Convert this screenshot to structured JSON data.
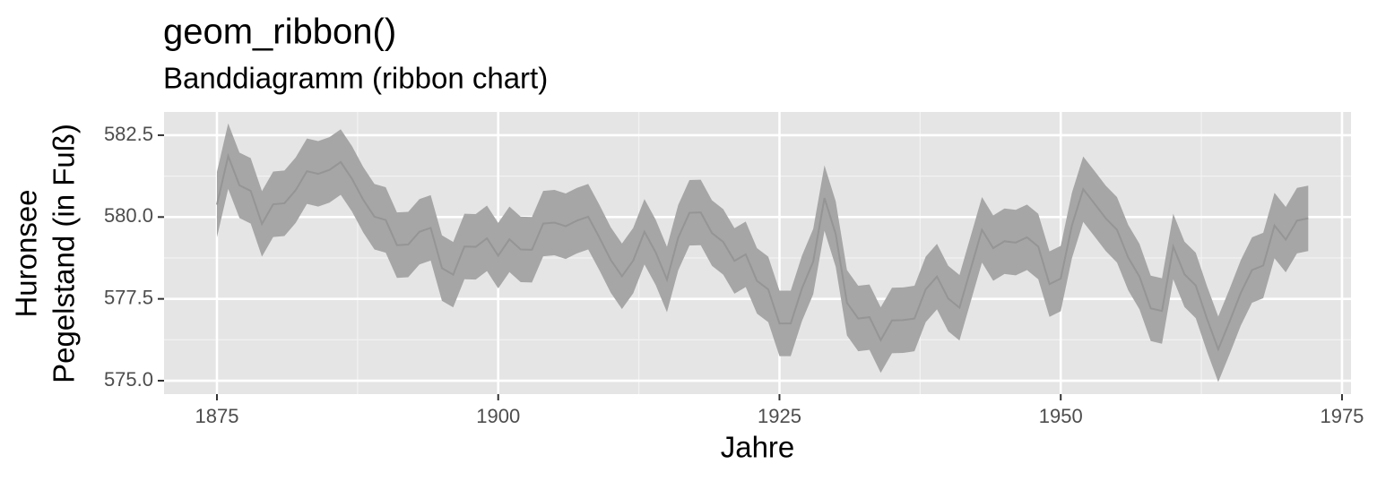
{
  "chart_data": {
    "type": "ribbon",
    "title": "geom_ribbon()",
    "subtitle": "Banddiagramm (ribbon chart)",
    "xlabel": "Jahre",
    "ylabel": [
      "Huronsee",
      "Pegelstand (in Fuß)"
    ],
    "x": [
      1875,
      1876,
      1877,
      1878,
      1879,
      1880,
      1881,
      1882,
      1883,
      1884,
      1885,
      1886,
      1887,
      1888,
      1889,
      1890,
      1891,
      1892,
      1893,
      1894,
      1895,
      1896,
      1897,
      1898,
      1899,
      1900,
      1901,
      1902,
      1903,
      1904,
      1905,
      1906,
      1907,
      1908,
      1909,
      1910,
      1911,
      1912,
      1913,
      1914,
      1915,
      1916,
      1917,
      1918,
      1919,
      1920,
      1921,
      1922,
      1923,
      1924,
      1925,
      1926,
      1927,
      1928,
      1929,
      1930,
      1931,
      1932,
      1933,
      1934,
      1935,
      1936,
      1937,
      1938,
      1939,
      1940,
      1941,
      1942,
      1943,
      1944,
      1945,
      1946,
      1947,
      1948,
      1949,
      1950,
      1951,
      1952,
      1953,
      1954,
      1955,
      1956,
      1957,
      1958,
      1959,
      1960,
      1961,
      1962,
      1963,
      1964,
      1965,
      1966,
      1967,
      1968,
      1969,
      1970,
      1971,
      1972
    ],
    "values": [
      580.38,
      581.86,
      580.97,
      580.8,
      579.79,
      580.39,
      580.42,
      580.82,
      581.4,
      581.32,
      581.44,
      581.68,
      581.17,
      580.53,
      580.01,
      579.91,
      579.14,
      579.16,
      579.55,
      579.67,
      578.44,
      578.24,
      579.1,
      579.09,
      579.35,
      578.82,
      579.32,
      579.01,
      579,
      579.8,
      579.83,
      579.72,
      579.89,
      580.01,
      579.37,
      578.69,
      578.19,
      578.67,
      579.55,
      578.92,
      578.09,
      579.37,
      580.13,
      580.14,
      579.51,
      579.24,
      578.66,
      578.86,
      578.05,
      577.79,
      576.75,
      576.75,
      577.82,
      578.64,
      580.58,
      579.48,
      577.38,
      576.9,
      576.94,
      576.24,
      576.84,
      576.85,
      576.9,
      577.79,
      578.18,
      577.51,
      577.23,
      578.42,
      579.61,
      579.05,
      579.26,
      579.22,
      579.38,
      579.1,
      577.95,
      578.12,
      579.75,
      580.85,
      580.41,
      579.96,
      579.61,
      578.76,
      578.18,
      577.21,
      577.13,
      579.1,
      578.25,
      577.91,
      576.89,
      575.96,
      576.8,
      577.68,
      578.38,
      578.52,
      579.74,
      579.31,
      579.89,
      579.96
    ],
    "lower": [
      579.38,
      580.86,
      579.97,
      579.8,
      578.79,
      579.39,
      579.42,
      579.82,
      580.4,
      580.32,
      580.44,
      580.68,
      580.17,
      579.53,
      579.01,
      578.91,
      578.14,
      578.16,
      578.55,
      578.67,
      577.44,
      577.24,
      578.1,
      578.09,
      578.35,
      577.82,
      578.32,
      578.01,
      578,
      578.8,
      578.83,
      578.72,
      578.89,
      579.01,
      578.37,
      577.69,
      577.19,
      577.67,
      578.55,
      577.92,
      577.09,
      578.37,
      579.13,
      579.14,
      578.51,
      578.24,
      577.66,
      577.86,
      577.05,
      576.79,
      575.75,
      575.75,
      576.82,
      577.64,
      579.58,
      578.48,
      576.38,
      575.9,
      575.94,
      575.24,
      575.84,
      575.85,
      575.9,
      576.79,
      577.18,
      576.51,
      576.23,
      577.42,
      578.61,
      578.05,
      578.26,
      578.22,
      578.38,
      578.1,
      576.95,
      577.12,
      578.75,
      579.85,
      579.41,
      578.96,
      578.61,
      577.76,
      577.18,
      576.21,
      576.13,
      578.1,
      577.25,
      576.91,
      575.89,
      574.96,
      575.8,
      576.68,
      577.38,
      577.52,
      578.74,
      578.31,
      578.89,
      578.96
    ],
    "upper": [
      581.38,
      582.86,
      581.97,
      581.8,
      580.79,
      581.39,
      581.42,
      581.82,
      582.4,
      582.32,
      582.44,
      582.68,
      582.17,
      581.53,
      581.01,
      580.91,
      580.14,
      580.16,
      580.55,
      580.67,
      579.44,
      579.24,
      580.1,
      580.09,
      580.35,
      579.82,
      580.32,
      580.01,
      580,
      580.8,
      580.83,
      580.72,
      580.89,
      581.01,
      580.37,
      579.69,
      579.19,
      579.67,
      580.55,
      579.92,
      579.09,
      580.37,
      581.13,
      581.14,
      580.51,
      580.24,
      579.66,
      579.86,
      579.05,
      578.79,
      577.75,
      577.75,
      578.82,
      579.64,
      581.58,
      580.48,
      578.38,
      577.9,
      577.94,
      577.24,
      577.84,
      577.85,
      577.9,
      578.79,
      579.18,
      578.51,
      578.23,
      579.42,
      580.61,
      580.05,
      580.26,
      580.22,
      580.38,
      580.1,
      578.95,
      579.12,
      580.75,
      581.85,
      581.41,
      580.96,
      580.61,
      579.76,
      579.18,
      578.21,
      578.13,
      580.1,
      579.25,
      578.91,
      577.89,
      576.96,
      577.8,
      578.68,
      579.38,
      579.52,
      580.74,
      580.31,
      580.89,
      580.96
    ],
    "ribbon_color": "#a6a6a6",
    "line_color": "#959595",
    "xlim": [
      1870.3,
      1975.8
    ],
    "xticks": [
      1875,
      1900,
      1925,
      1950,
      1975
    ],
    "ylim": [
      574.59,
      583.21
    ],
    "yticks": [
      {
        "value": 575,
        "label": "575.0"
      },
      577.5,
      {
        "value": 580,
        "label": "580.0"
      },
      582.5
    ],
    "grid": true
  }
}
